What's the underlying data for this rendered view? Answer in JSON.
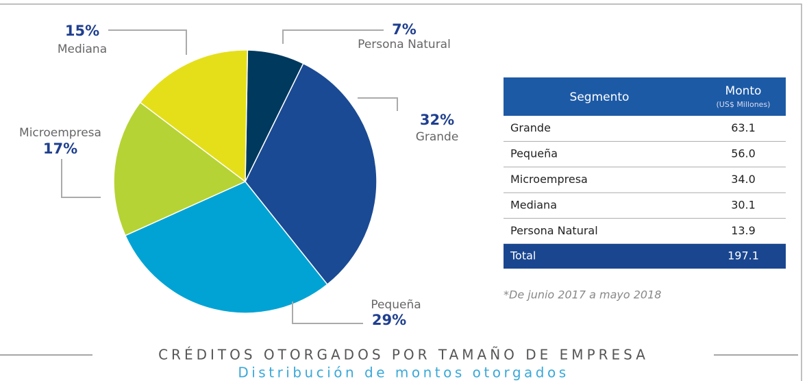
{
  "chart_data": {
    "type": "pie",
    "title": "CRÉDITOS OTORGADOS POR TAMAÑO DE EMPRESA",
    "subtitle": "Distribución de montos otorgados",
    "categories": [
      "Persona Natural",
      "Grande",
      "Pequeña",
      "Microempresa",
      "Mediana"
    ],
    "values": [
      7,
      32,
      29,
      17,
      15
    ],
    "value_labels": [
      "7%",
      "32%",
      "29%",
      "17%",
      "15%"
    ],
    "colors": [
      "#00395e",
      "#1a4a94",
      "#00a3d4",
      "#b5d334",
      "#e5df1a"
    ]
  },
  "table": {
    "columns": [
      "Segmento",
      "Monto"
    ],
    "unit": "(US$ Millones)",
    "rows": [
      [
        "Grande",
        "63.1"
      ],
      [
        "Pequeña",
        "56.0"
      ],
      [
        "Microempresa",
        "34.0"
      ],
      [
        "Mediana",
        "30.1"
      ],
      [
        "Persona Natural",
        "13.9"
      ]
    ],
    "total": [
      "Total",
      "197.1"
    ],
    "note": "*De junio 2017 a mayo 2018"
  }
}
